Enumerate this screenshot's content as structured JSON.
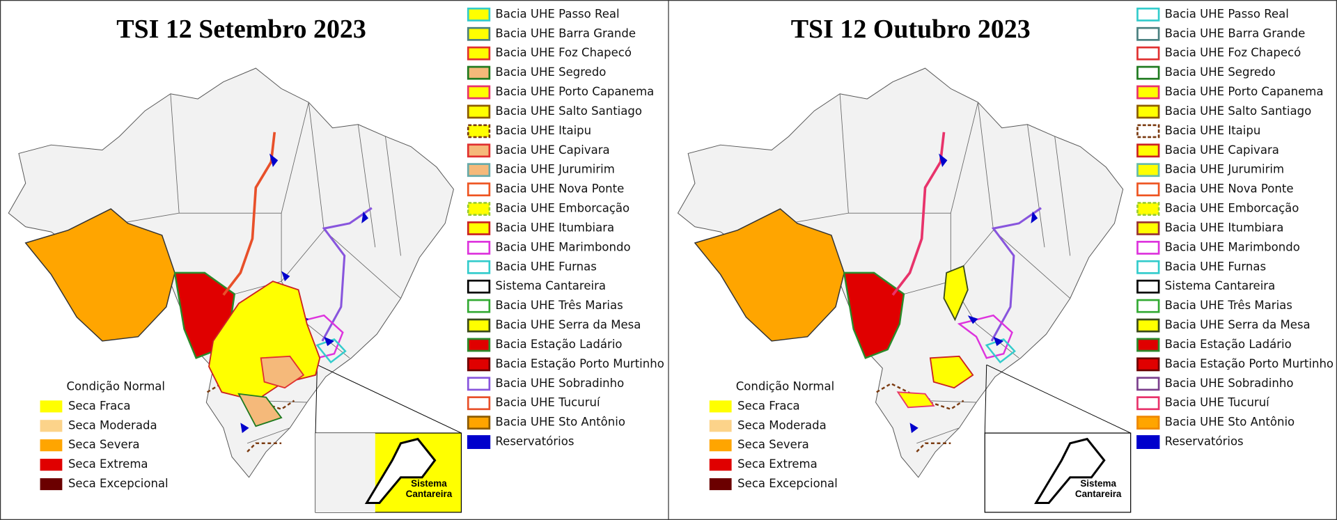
{
  "panels": [
    {
      "title": "TSI 12 Setembro 2023",
      "drought_legend": [
        {
          "label": "Condição Normal"
        },
        {
          "label": "Seca Fraca",
          "color": "#ffff00"
        },
        {
          "label": "Seca Moderada",
          "color": "#fcd38a"
        },
        {
          "label": "Seca Severa",
          "color": "#ffa500"
        },
        {
          "label": "Seca Extrema",
          "color": "#e00000"
        },
        {
          "label": "Seca Excepcional",
          "color": "#6b0000"
        }
      ],
      "basin_legend": [
        {
          "label": "Bacia UHE Passo Real",
          "fill": "#ffff00",
          "stroke": "#33cccc"
        },
        {
          "label": "Bacia UHE Barra Grande",
          "fill": "#ffff00",
          "stroke": "#4a8080"
        },
        {
          "label": "Bacia UHE Foz Chapecó",
          "fill": "#ffff00",
          "stroke": "#e03030"
        },
        {
          "label": "Bacia UHE Segredo",
          "fill": "#f5b97a",
          "stroke": "#1f7a1f"
        },
        {
          "label": "Bacia UHE Porto Capanema",
          "fill": "#ffff00",
          "stroke": "#e8336b"
        },
        {
          "label": "Bacia UHE Salto Santiago",
          "fill": "#ffff00",
          "stroke": "#8b5a00"
        },
        {
          "label": "Bacia UHE Itaipu",
          "fill": "#ffff00",
          "stroke": "#7a3a10",
          "dashed": true
        },
        {
          "label": "Bacia UHE Capivara",
          "fill": "#f5b97a",
          "stroke": "#e03030"
        },
        {
          "label": "Bacia UHE Jurumirim",
          "fill": "#f5b97a",
          "stroke": "#66aaaa"
        },
        {
          "label": "Bacia UHE Nova Ponte",
          "fill": "#ffffff",
          "stroke": "#ee5522"
        },
        {
          "label": "Bacia UHE Emborcação",
          "fill": "#ffff00",
          "stroke": "#99cc33",
          "dashed": true
        },
        {
          "label": "Bacia UHE Itumbiara",
          "fill": "#ffff00",
          "stroke": "#cc2222"
        },
        {
          "label": "Bacia UHE Marimbondo",
          "fill": "#ffffff",
          "stroke": "#dd33dd"
        },
        {
          "label": "Bacia UHE Furnas",
          "fill": "#ffffff",
          "stroke": "#33cccc"
        },
        {
          "label": "Sistema Cantareira",
          "fill": "#ffffff",
          "stroke": "#000000"
        },
        {
          "label": "Bacia UHE Três Marias",
          "fill": "#ffffff",
          "stroke": "#33aa33"
        },
        {
          "label": "Bacia UHE Serra da Mesa",
          "fill": "#ffff00",
          "stroke": "#3a4a1a"
        },
        {
          "label": "Bacia Estação Ladário",
          "fill": "#e00000",
          "stroke": "#2a8a2a"
        },
        {
          "label": "Bacia Estação Porto Murtinho",
          "fill": "#e00000",
          "stroke": "#6b0000"
        },
        {
          "label": "Bacia UHE Sobradinho",
          "fill": "#ffffff",
          "stroke": "#8855dd"
        },
        {
          "label": "Bacia UHE Tucuruí",
          "fill": "#ffffff",
          "stroke": "#e8502a"
        },
        {
          "label": "Bacia UHE Sto Antônio",
          "fill": "#ffa500",
          "stroke": "#8a5a00"
        },
        {
          "label": "Reservatórios",
          "fill": "#0000cc",
          "stroke": "#0000cc"
        }
      ],
      "inset_label": [
        "Sistema",
        "Cantareira"
      ]
    },
    {
      "title": "TSI 12 Outubro 2023",
      "drought_legend": [
        {
          "label": "Condição Normal"
        },
        {
          "label": "Seca Fraca",
          "color": "#ffff00"
        },
        {
          "label": "Seca Moderada",
          "color": "#fcd38a"
        },
        {
          "label": "Seca Severa",
          "color": "#ffa500"
        },
        {
          "label": "Seca Extrema",
          "color": "#e00000"
        },
        {
          "label": "Seca Excepcional",
          "color": "#6b0000"
        }
      ],
      "basin_legend": [
        {
          "label": "Bacia UHE Passo Real",
          "fill": "#ffffff",
          "stroke": "#33cccc"
        },
        {
          "label": "Bacia UHE Barra Grande",
          "fill": "#ffffff",
          "stroke": "#4a8080"
        },
        {
          "label": "Bacia UHE Foz Chapecó",
          "fill": "#ffffff",
          "stroke": "#e03030"
        },
        {
          "label": "Bacia UHE Segredo",
          "fill": "#ffffff",
          "stroke": "#1f7a1f"
        },
        {
          "label": "Bacia UHE Porto Capanema",
          "fill": "#ffff00",
          "stroke": "#e8336b"
        },
        {
          "label": "Bacia UHE Salto Santiago",
          "fill": "#ffff00",
          "stroke": "#8b5a00"
        },
        {
          "label": "Bacia UHE Itaipu",
          "fill": "#ffffff",
          "stroke": "#7a3a10",
          "dashed": true
        },
        {
          "label": "Bacia UHE Capivara",
          "fill": "#ffff00",
          "stroke": "#cc2222"
        },
        {
          "label": "Bacia UHE Jurumirim",
          "fill": "#ffff00",
          "stroke": "#66bbaa"
        },
        {
          "label": "Bacia UHE Nova Ponte",
          "fill": "#ffffff",
          "stroke": "#ee5522"
        },
        {
          "label": "Bacia UHE Emborcação",
          "fill": "#ffff00",
          "stroke": "#99cc33",
          "dashed": true
        },
        {
          "label": "Bacia UHE Itumbiara",
          "fill": "#ffff00",
          "stroke": "#993333"
        },
        {
          "label": "Bacia UHE Marimbondo",
          "fill": "#ffffff",
          "stroke": "#dd33dd"
        },
        {
          "label": "Bacia UHE Furnas",
          "fill": "#ffffff",
          "stroke": "#33cccc"
        },
        {
          "label": "Sistema Cantareira",
          "fill": "#ffffff",
          "stroke": "#000000"
        },
        {
          "label": "Bacia UHE Três Marias",
          "fill": "#ffffff",
          "stroke": "#33aa33"
        },
        {
          "label": "Bacia UHE Serra da Mesa",
          "fill": "#ffff00",
          "stroke": "#3a4a1a"
        },
        {
          "label": "Bacia Estação Ladário",
          "fill": "#e00000",
          "stroke": "#2a8a2a"
        },
        {
          "label": "Bacia Estação Porto Murtinho",
          "fill": "#e00000",
          "stroke": "#6b0000"
        },
        {
          "label": "Bacia UHE Sobradinho",
          "fill": "#ffffff",
          "stroke": "#7b3f8c"
        },
        {
          "label": "Bacia UHE Tucuruí",
          "fill": "#ffffff",
          "stroke": "#e8336b"
        },
        {
          "label": "Bacia UHE Sto Antônio",
          "fill": "#ffa500",
          "stroke": "#ee8800"
        },
        {
          "label": "Reservatórios",
          "fill": "#0000cc",
          "stroke": "#0000cc"
        }
      ],
      "inset_label": [
        "Sistema",
        "Cantareira"
      ]
    }
  ]
}
